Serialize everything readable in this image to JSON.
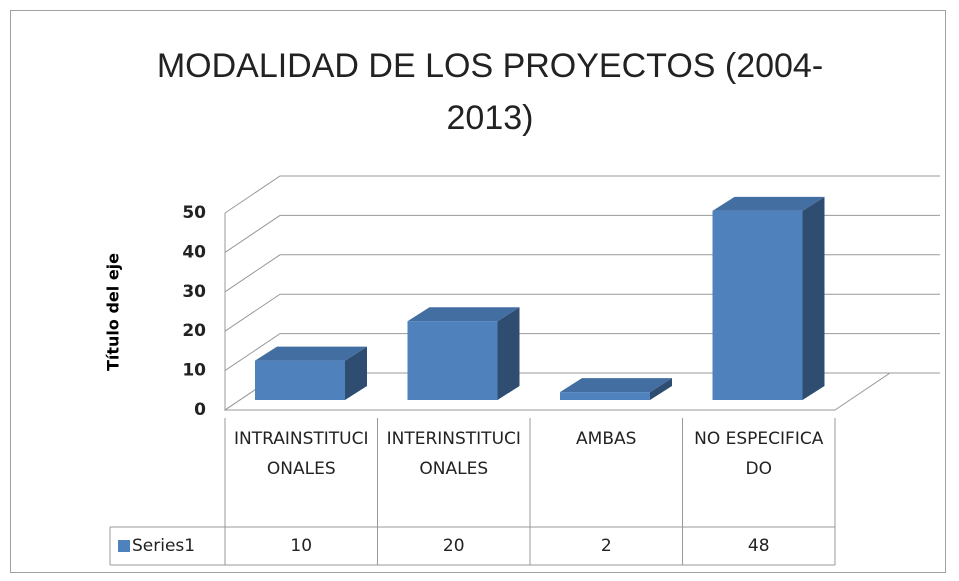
{
  "chart_data": {
    "type": "bar",
    "title": "MODALIDAD DE LOS PROYECTOS (2004-2013)",
    "y_axis_label": "Título del eje",
    "categories": [
      "INTRAINSTITUCIONALES",
      "INTERINSTITUCIONALES",
      "AMBAS",
      "NO ESPECIFICADO"
    ],
    "series": [
      {
        "name": "Series1",
        "color": "#4f81bd",
        "values": [
          10,
          20,
          2,
          48
        ]
      }
    ],
    "ylim": [
      0,
      50
    ],
    "yticks": [
      0,
      10,
      20,
      30,
      40,
      50
    ],
    "grid": true
  }
}
